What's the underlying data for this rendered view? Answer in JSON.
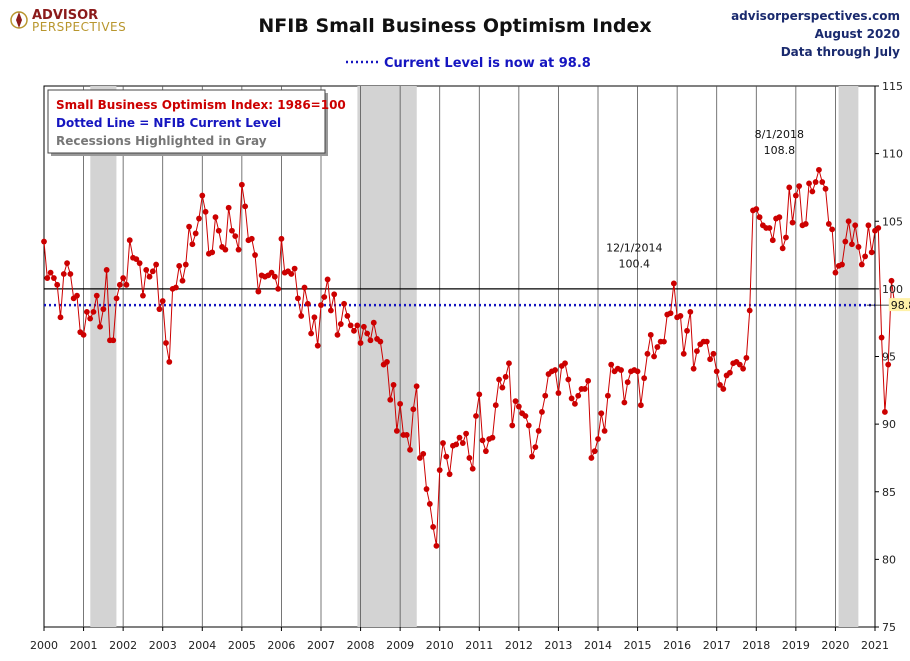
{
  "header": {
    "logo_line1": "ADVISOR",
    "logo_line2": "PERSPECTIVES",
    "title": "NFIB Small Business Optimism Index",
    "subtitle": "Current Level is now at 98.8",
    "source_site": "advisorperspectives.com",
    "source_date": "August 2020",
    "source_through": "Data through July"
  },
  "legend": {
    "line1": "Small Business Optimism Index: 1986=100",
    "line2": "Dotted Line = NFIB Current Level",
    "line3": "Recessions Highlighted in Gray"
  },
  "colors": {
    "series": "#cc0000",
    "current_level": "#1515c0",
    "recession": "#d3d3d3",
    "baseline": "#000000",
    "legend_line1": "#cc0000",
    "legend_line2": "#1515c0",
    "legend_line3": "#777777"
  },
  "chart_data": {
    "type": "line",
    "title": "NFIB Small Business Optimism Index",
    "xlim": [
      2000,
      2021
    ],
    "ylim": [
      75,
      115
    ],
    "y_ticks": [
      75,
      80,
      85,
      90,
      95,
      100,
      105,
      110,
      115
    ],
    "x_ticks": [
      2000,
      2001,
      2002,
      2003,
      2004,
      2005,
      2006,
      2007,
      2008,
      2009,
      2010,
      2011,
      2012,
      2013,
      2014,
      2015,
      2016,
      2017,
      2018,
      2019,
      2020,
      2021
    ],
    "y_axis_side": "right",
    "baseline": 100,
    "current_level": 98.8,
    "current_level_label": "98.8",
    "recessions": [
      [
        2001.17,
        2001.83
      ],
      [
        2007.92,
        2009.42
      ],
      [
        2020.08,
        2020.58
      ]
    ],
    "annotations": [
      {
        "date": "12/1/2014",
        "value": "100.4",
        "x": 2014.917,
        "y": 100.4
      },
      {
        "date": "8/1/2018",
        "value": "108.8",
        "x": 2018.583,
        "y": 108.8
      }
    ],
    "start_year": 2000,
    "series": [
      {
        "values": [
          103.5,
          100.8,
          101.2,
          100.8,
          100.3,
          97.9,
          101.1,
          101.9,
          101.1,
          99.3,
          99.5,
          96.8,
          96.6,
          98.3,
          97.8,
          98.3,
          99.5,
          97.2,
          98.5,
          101.4,
          96.2,
          96.2,
          99.3,
          100.3,
          100.8,
          100.3,
          103.6,
          102.3,
          102.2,
          101.9,
          99.5,
          101.4,
          100.9,
          101.3,
          101.8,
          98.5,
          99.1,
          96.0,
          94.6,
          100.0,
          100.1,
          101.7,
          100.6,
          101.8,
          104.6,
          103.3,
          104.1,
          105.2,
          106.9,
          105.7,
          102.6,
          102.7,
          105.3,
          104.3,
          103.1,
          102.9,
          106.0,
          104.3,
          103.9,
          102.9,
          107.7,
          106.1,
          103.6,
          103.7,
          102.5,
          99.8,
          101.0,
          100.9,
          101.0,
          101.2,
          100.9,
          100.0,
          103.7,
          101.2,
          101.3,
          101.1,
          101.5,
          99.3,
          98.0,
          100.1,
          98.9,
          96.7,
          97.9,
          95.8,
          98.8,
          99.4,
          100.7,
          98.4,
          99.6,
          96.6,
          97.4,
          98.9,
          98.0,
          97.3,
          96.9,
          97.3,
          96.0,
          97.2,
          96.7,
          96.2,
          97.5,
          96.3,
          96.1,
          94.4,
          94.6,
          91.8,
          92.9,
          89.5,
          91.5,
          89.2,
          89.2,
          88.1,
          91.1,
          92.8,
          87.5,
          87.8,
          85.2,
          84.1,
          82.4,
          81.0,
          86.6,
          88.6,
          87.6,
          86.3,
          88.4,
          88.5,
          89.0,
          88.6,
          89.3,
          87.5,
          86.7,
          90.6,
          92.2,
          88.8,
          88.0,
          88.9,
          89.0,
          91.4,
          93.3,
          92.7,
          93.5,
          94.5,
          89.9,
          91.7,
          91.3,
          90.8,
          90.6,
          89.9,
          87.6,
          88.3,
          89.5,
          90.9,
          92.1,
          93.7,
          93.9,
          94.0,
          92.3,
          94.3,
          94.5,
          93.3,
          91.9,
          91.5,
          92.1,
          92.6,
          92.6,
          93.2,
          87.5,
          88.0,
          88.9,
          90.8,
          89.5,
          92.1,
          94.4,
          93.9,
          94.1,
          94.0,
          91.6,
          93.1,
          93.9,
          94.0,
          93.9,
          91.4,
          93.4,
          95.2,
          96.6,
          95.0,
          95.7,
          96.1,
          96.1,
          98.1,
          98.2,
          100.4,
          97.9,
          98.0,
          95.2,
          96.9,
          98.3,
          94.1,
          95.4,
          95.9,
          96.1,
          96.1,
          94.8,
          95.2,
          93.9,
          92.9,
          92.6,
          93.6,
          93.8,
          94.5,
          94.6,
          94.4,
          94.1,
          94.9,
          98.4,
          105.8,
          105.9,
          105.3,
          104.7,
          104.5,
          104.5,
          103.6,
          105.2,
          105.3,
          103.0,
          103.8,
          107.5,
          104.9,
          106.9,
          107.6,
          104.7,
          104.8,
          107.8,
          107.2,
          107.9,
          108.8,
          107.9,
          107.4,
          104.8,
          104.4,
          101.2,
          101.7,
          101.8,
          103.5,
          105.0,
          103.3,
          104.7,
          103.1,
          101.8,
          102.4,
          104.7,
          102.7,
          104.3,
          104.5,
          96.4,
          90.9,
          94.4,
          100.6,
          98.8
        ]
      }
    ]
  }
}
